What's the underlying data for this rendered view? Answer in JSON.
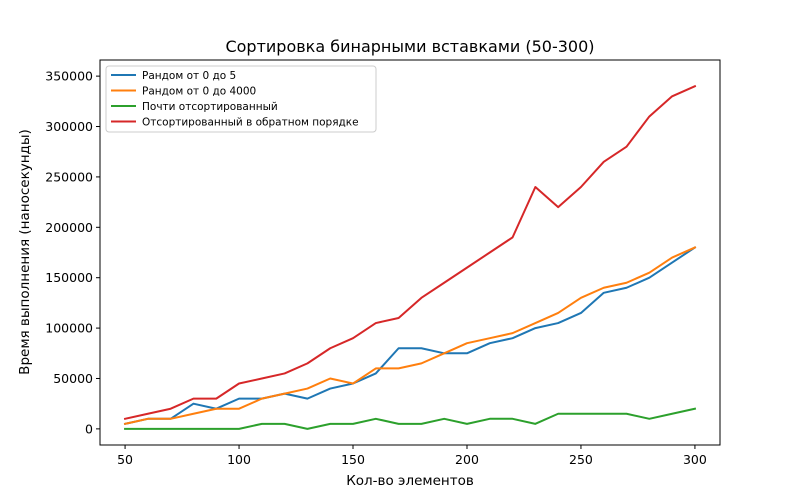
{
  "chart_data": {
    "type": "line",
    "title": "Сортировка бинарными вставками (50-300)",
    "xlabel": "Кол-во элементов",
    "ylabel": "Время выполнения (наносекунды)",
    "xlim": [
      39,
      311
    ],
    "ylim": [
      -16000,
      366000
    ],
    "xticks": [
      50,
      100,
      150,
      200,
      250,
      300
    ],
    "yticks": [
      0,
      50000,
      100000,
      150000,
      200000,
      250000,
      300000,
      350000
    ],
    "grid": false,
    "legend": "top-left",
    "x": [
      50,
      60,
      70,
      80,
      90,
      100,
      110,
      120,
      130,
      140,
      150,
      160,
      170,
      180,
      190,
      200,
      210,
      220,
      230,
      240,
      250,
      260,
      270,
      280,
      290,
      300
    ],
    "series": [
      {
        "name": "Рандом от 0 до 5",
        "color": "#1f77b4",
        "values": [
          5000,
          10000,
          10000,
          25000,
          20000,
          30000,
          30000,
          35000,
          30000,
          40000,
          45000,
          55000,
          80000,
          80000,
          75000,
          75000,
          85000,
          90000,
          100000,
          105000,
          115000,
          135000,
          140000,
          150000,
          165000,
          180000
        ]
      },
      {
        "name": "Рандом от 0 до 4000",
        "color": "#ff7f0e",
        "values": [
          5000,
          10000,
          10000,
          15000,
          20000,
          20000,
          30000,
          35000,
          40000,
          50000,
          45000,
          60000,
          60000,
          65000,
          75000,
          85000,
          90000,
          95000,
          105000,
          115000,
          130000,
          140000,
          145000,
          155000,
          170000,
          180000
        ]
      },
      {
        "name": "Почти отсортированный",
        "color": "#2ca02c",
        "values": [
          0,
          0,
          0,
          0,
          0,
          0,
          5000,
          5000,
          0,
          5000,
          5000,
          10000,
          5000,
          5000,
          10000,
          5000,
          10000,
          10000,
          5000,
          15000,
          15000,
          15000,
          15000,
          10000,
          15000,
          20000
        ]
      },
      {
        "name": "Отсортированный в обратном порядке",
        "color": "#d62728",
        "values": [
          10000,
          15000,
          20000,
          30000,
          30000,
          45000,
          50000,
          55000,
          65000,
          80000,
          90000,
          105000,
          110000,
          130000,
          145000,
          160000,
          175000,
          190000,
          240000,
          220000,
          240000,
          265000,
          280000,
          310000,
          330000,
          340000
        ]
      }
    ]
  }
}
